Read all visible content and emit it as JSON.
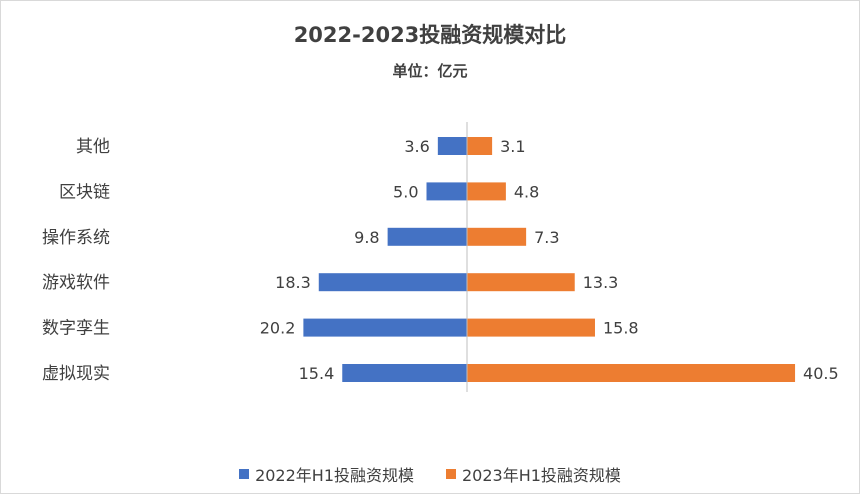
{
  "chart_data": {
    "type": "bar",
    "orientation": "horizontal-butterfly",
    "title": "2022-2023投融资规模对比",
    "subtitle": "单位：亿元",
    "categories": [
      "其他",
      "区块链",
      "操作系统",
      "游戏软件",
      "数字孪生",
      "虚拟现实"
    ],
    "series": [
      {
        "name": "2022年H1投融资规模",
        "color": "#4472c4",
        "side": "left",
        "values": [
          3.6,
          5.0,
          9.8,
          18.3,
          20.2,
          15.4
        ],
        "labels": [
          "3.6",
          "5.0",
          "9.8",
          "18.3",
          "20.2",
          "15.4"
        ]
      },
      {
        "name": "2023年H1投融资规模",
        "color": "#ed7d31",
        "side": "right",
        "values": [
          3.1,
          4.8,
          7.3,
          13.3,
          15.8,
          40.5
        ],
        "labels": [
          "3.1",
          "4.8",
          "7.3",
          "13.3",
          "15.8",
          "40.5"
        ]
      }
    ],
    "legend_position": "bottom",
    "grid": false
  }
}
